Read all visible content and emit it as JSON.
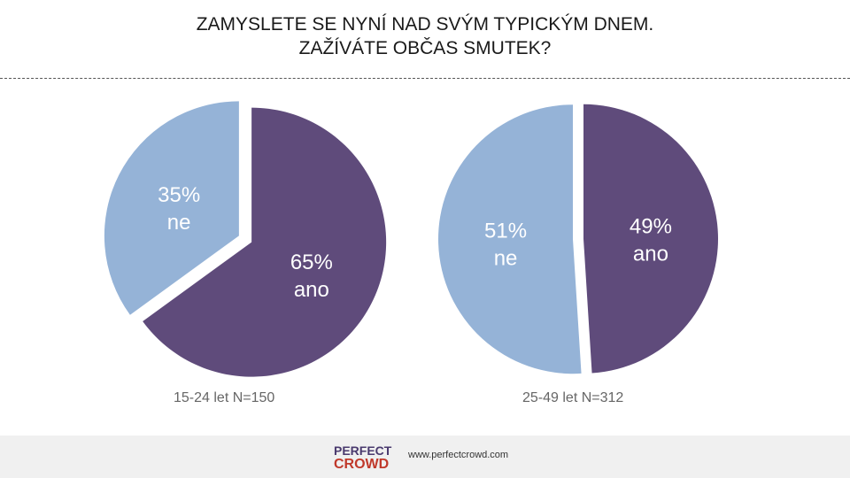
{
  "title": {
    "line1": "ZAMYSLETE SE NYNÍ NAD SVÝM TYPICKÝM DNEM.",
    "line2": "ZAŽÍVÁTE OBČAS SMUTEK?"
  },
  "colors": {
    "ano": "#5f4b7b",
    "ne": "#95b3d7"
  },
  "chart_data": [
    {
      "type": "pie",
      "caption": "15-24 let N=150",
      "slices": [
        {
          "label": "ano",
          "value": 65,
          "value_label": "65%"
        },
        {
          "label": "ne",
          "value": 35,
          "value_label": "35%"
        }
      ]
    },
    {
      "type": "pie",
      "caption": "25-49 let N=312",
      "slices": [
        {
          "label": "ano",
          "value": 49,
          "value_label": "49%"
        },
        {
          "label": "ne",
          "value": 51,
          "value_label": "51%"
        }
      ]
    }
  ],
  "footer": {
    "logo_line1": "PERFECT",
    "logo_line2": "CROWD",
    "website": "www.perfectcrowd.com"
  }
}
